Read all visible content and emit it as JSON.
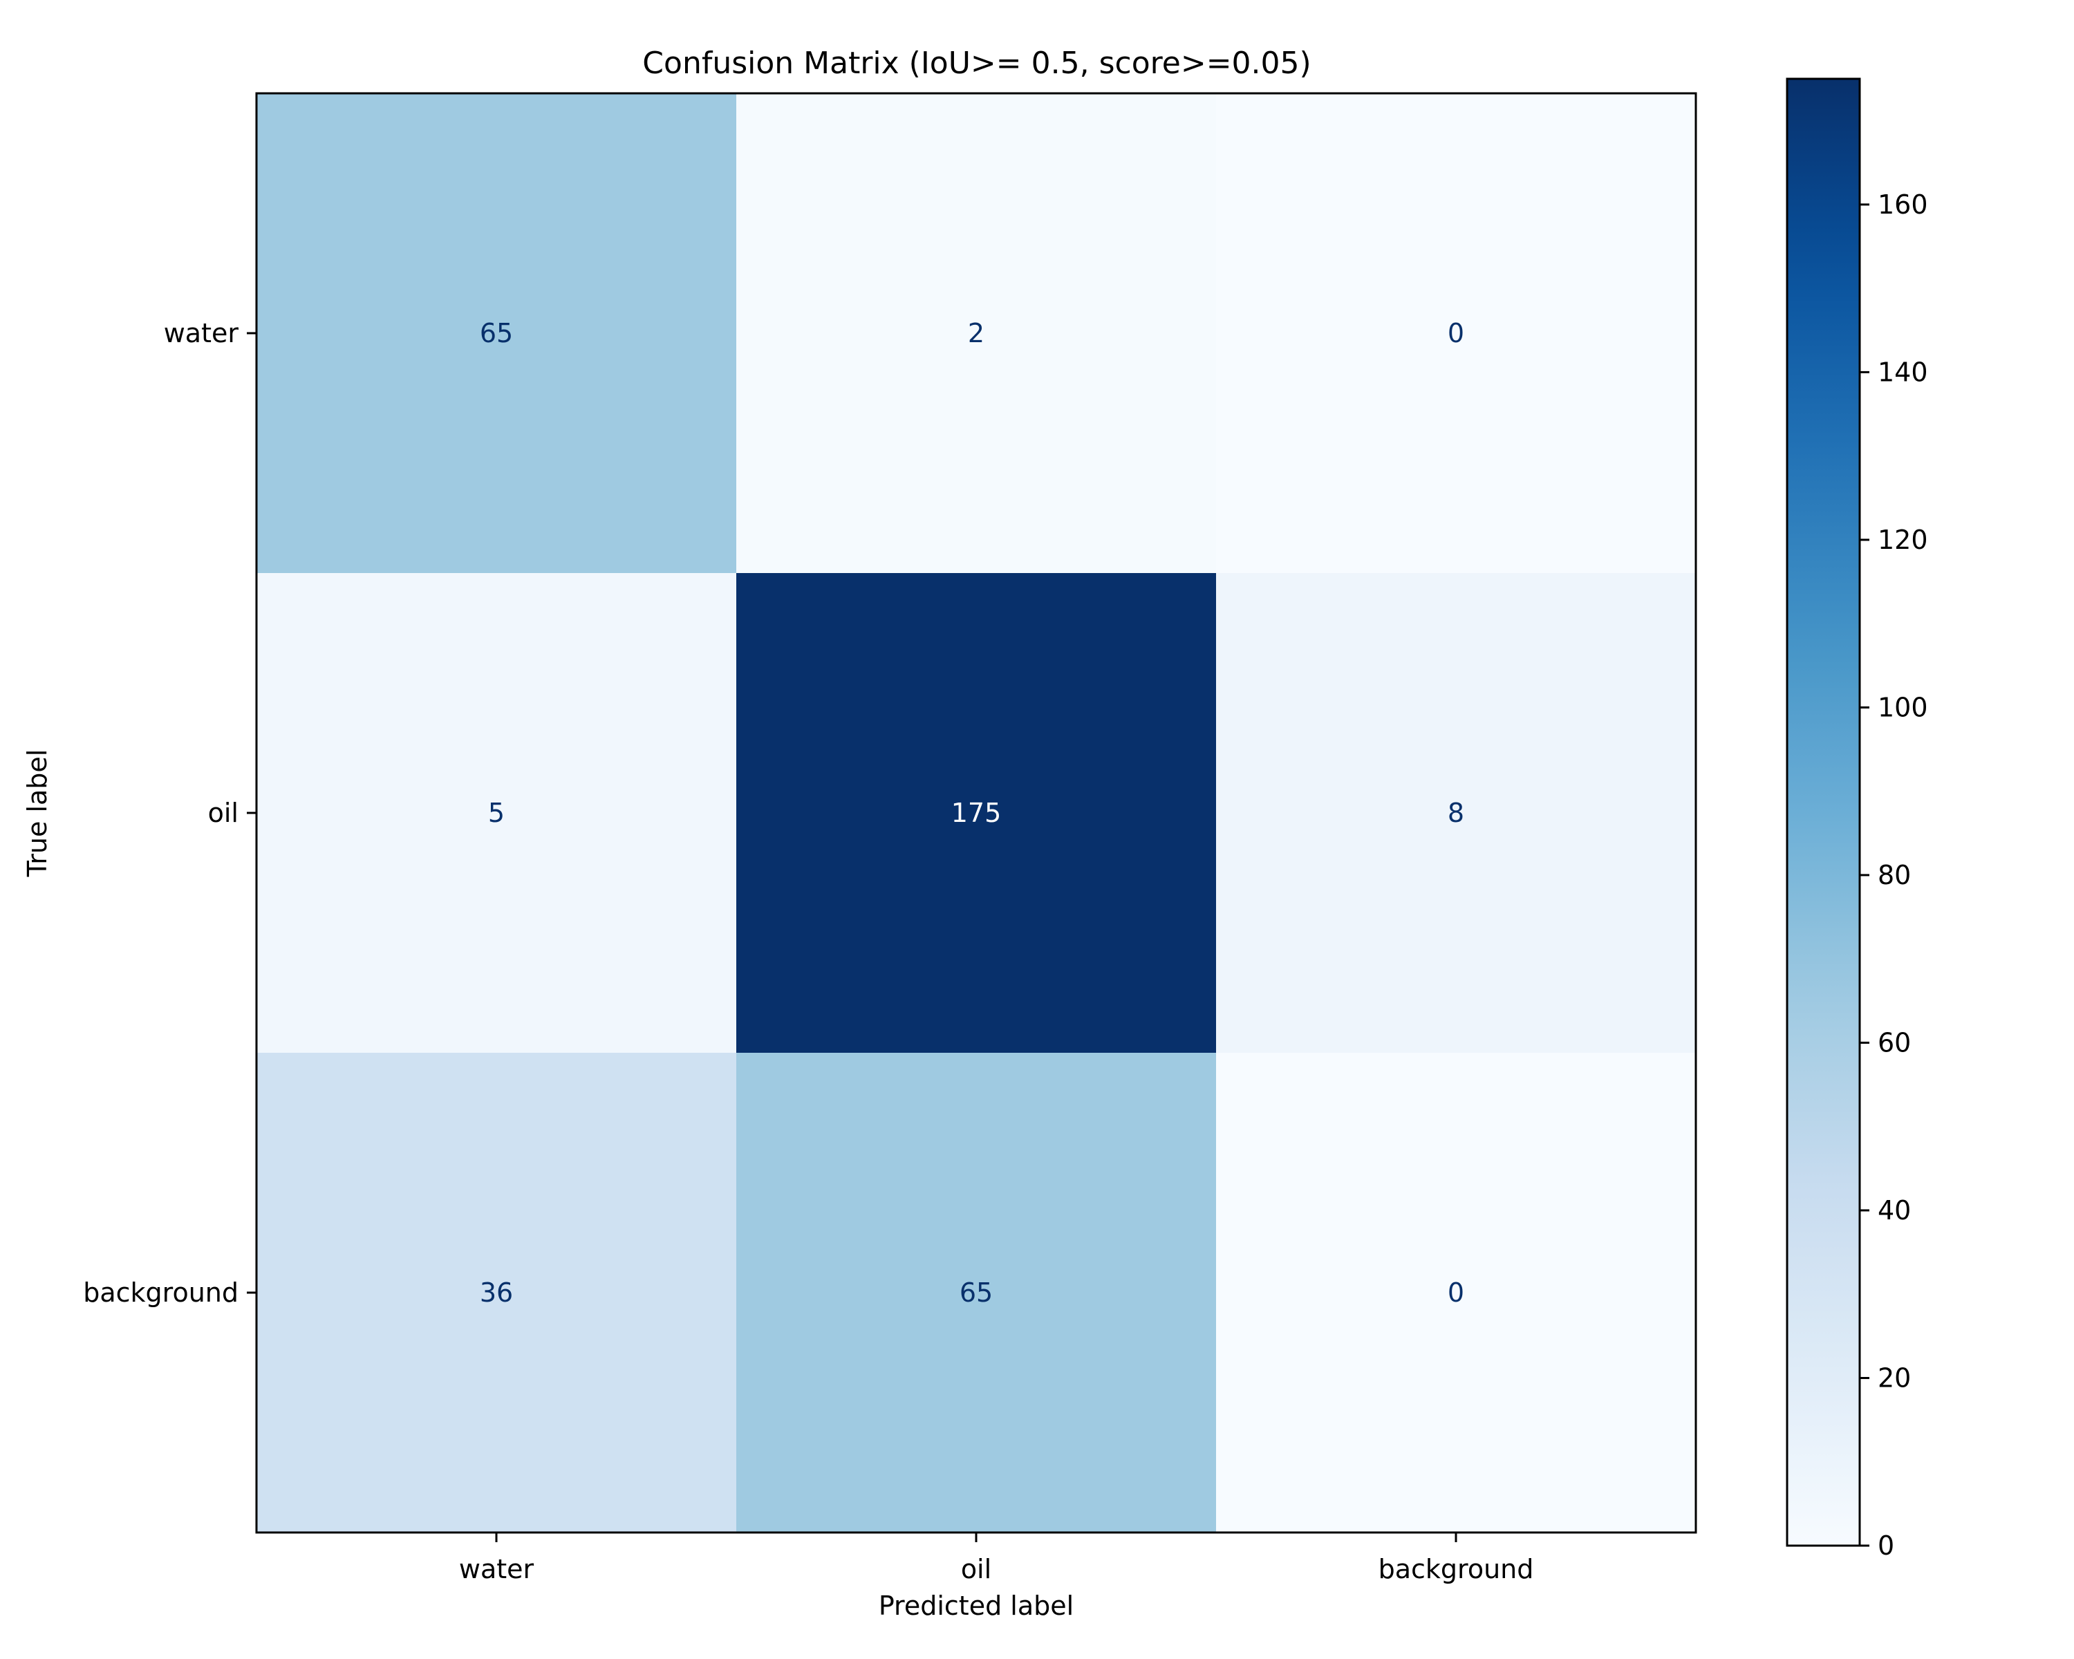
{
  "chart_data": {
    "type": "heatmap",
    "title": "Confusion Matrix (IoU>= 0.5, score>=0.05)",
    "xlabel": "Predicted label",
    "ylabel": "True label",
    "x_categories": [
      "water",
      "oil",
      "background"
    ],
    "y_categories": [
      "water",
      "oil",
      "background"
    ],
    "values": [
      [
        65,
        2,
        0
      ],
      [
        5,
        175,
        8
      ],
      [
        36,
        65,
        0
      ]
    ],
    "colormap": "Blues",
    "vmin": 0,
    "vmax": 175,
    "colorbar_ticks": [
      0,
      20,
      40,
      60,
      80,
      100,
      120,
      140,
      160
    ],
    "text_color_dark": "#08306b",
    "text_color_light": "#ffffff"
  }
}
